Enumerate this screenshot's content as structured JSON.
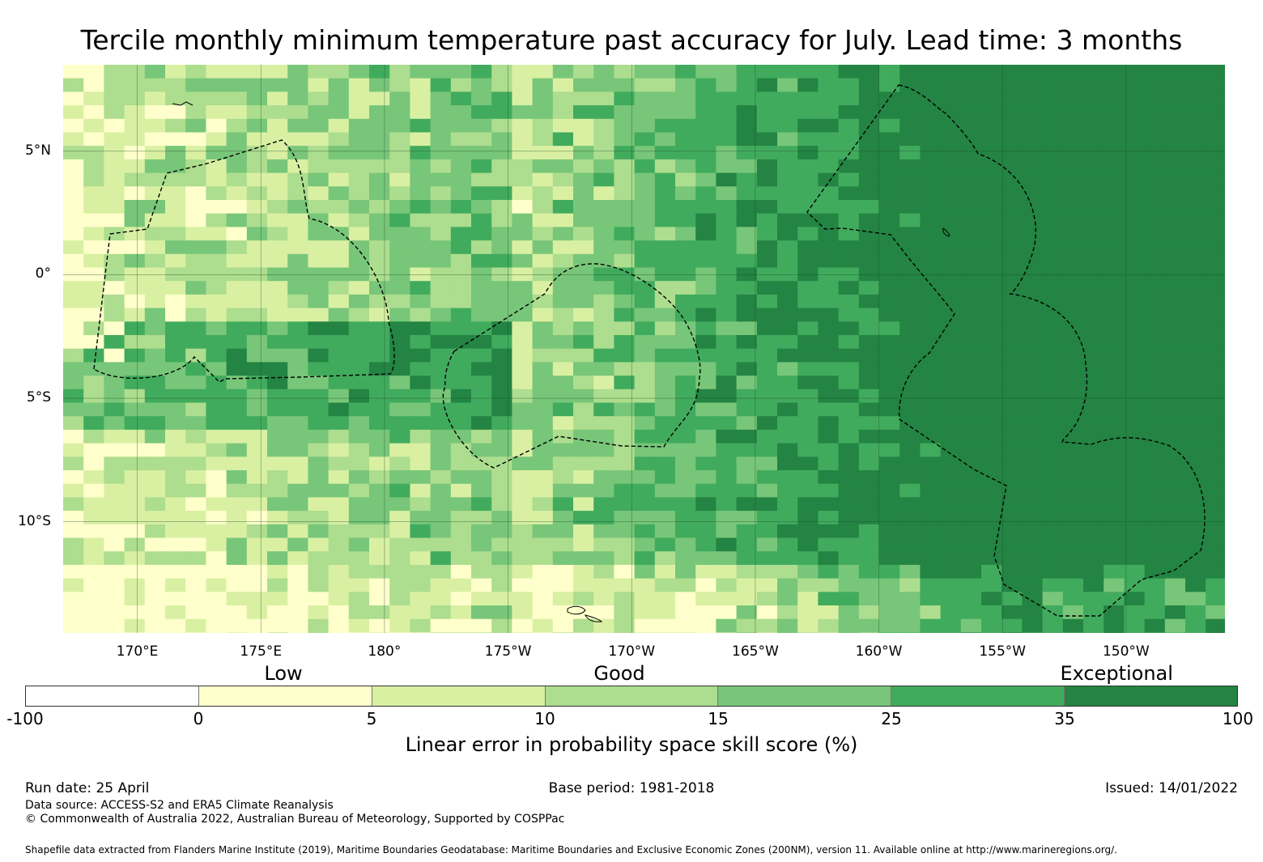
{
  "title": "Tercile monthly minimum temperature past accuracy for July. Lead time: 3 months",
  "map": {
    "lon_range": [
      -193,
      -146
    ],
    "lat_range": [
      -14.5,
      8.5
    ],
    "lat_ticks": [
      {
        "value": 5,
        "label": "5°N"
      },
      {
        "value": 0,
        "label": "0°"
      },
      {
        "value": -5,
        "label": "5°S"
      },
      {
        "value": -10,
        "label": "10°S"
      }
    ],
    "lon_ticks": [
      {
        "value": -190,
        "label": "170°E"
      },
      {
        "value": -185,
        "label": "175°E"
      },
      {
        "value": -180,
        "label": "180°"
      },
      {
        "value": -175,
        "label": "175°W"
      },
      {
        "value": -170,
        "label": "170°W"
      },
      {
        "value": -165,
        "label": "165°W"
      },
      {
        "value": -160,
        "label": "160°W"
      },
      {
        "value": -155,
        "label": "155°W"
      },
      {
        "value": -150,
        "label": "150°W"
      }
    ],
    "grid": true
  },
  "legend": {
    "categories": [
      {
        "label": "Low",
        "position": 0.213
      },
      {
        "label": "Good",
        "position": 0.49
      },
      {
        "label": "Exceptional",
        "position": 0.9
      }
    ],
    "bins": [
      {
        "from": -100,
        "to": 0,
        "color": "#ffffff"
      },
      {
        "from": 0,
        "to": 5,
        "color": "#ffffcc"
      },
      {
        "from": 5,
        "to": 10,
        "color": "#d9f0a3"
      },
      {
        "from": 10,
        "to": 15,
        "color": "#addd8e"
      },
      {
        "from": 15,
        "to": 25,
        "color": "#78c679"
      },
      {
        "from": 25,
        "to": 35,
        "color": "#41ab5d"
      },
      {
        "from": 35,
        "to": 100,
        "color": "#238443"
      }
    ],
    "tick_labels": [
      "-100",
      "0",
      "5",
      "10",
      "15",
      "25",
      "35",
      "100"
    ],
    "title": "Linear error in probability space skill score (%)"
  },
  "footer": {
    "run_date": "Run date: 25 April",
    "base_period": "Base period: 1981-2018",
    "issued": "Issued: 14/01/2022",
    "data_source": "Data source: ACCESS-S2 and ERA5 Climate Reanalysis",
    "copyright": "© Commonwealth of Australia 2022, Australian Bureau of Meteorology, Supported by COSPPac",
    "shapefile": "Shapefile data extracted from Flanders Marine Institute (2019), Maritime Boundaries Geodatabase: Maritime Boundaries and Exclusive Economic Zones (200NM), version 11. Available online at http://www.marineregions.org/."
  }
}
